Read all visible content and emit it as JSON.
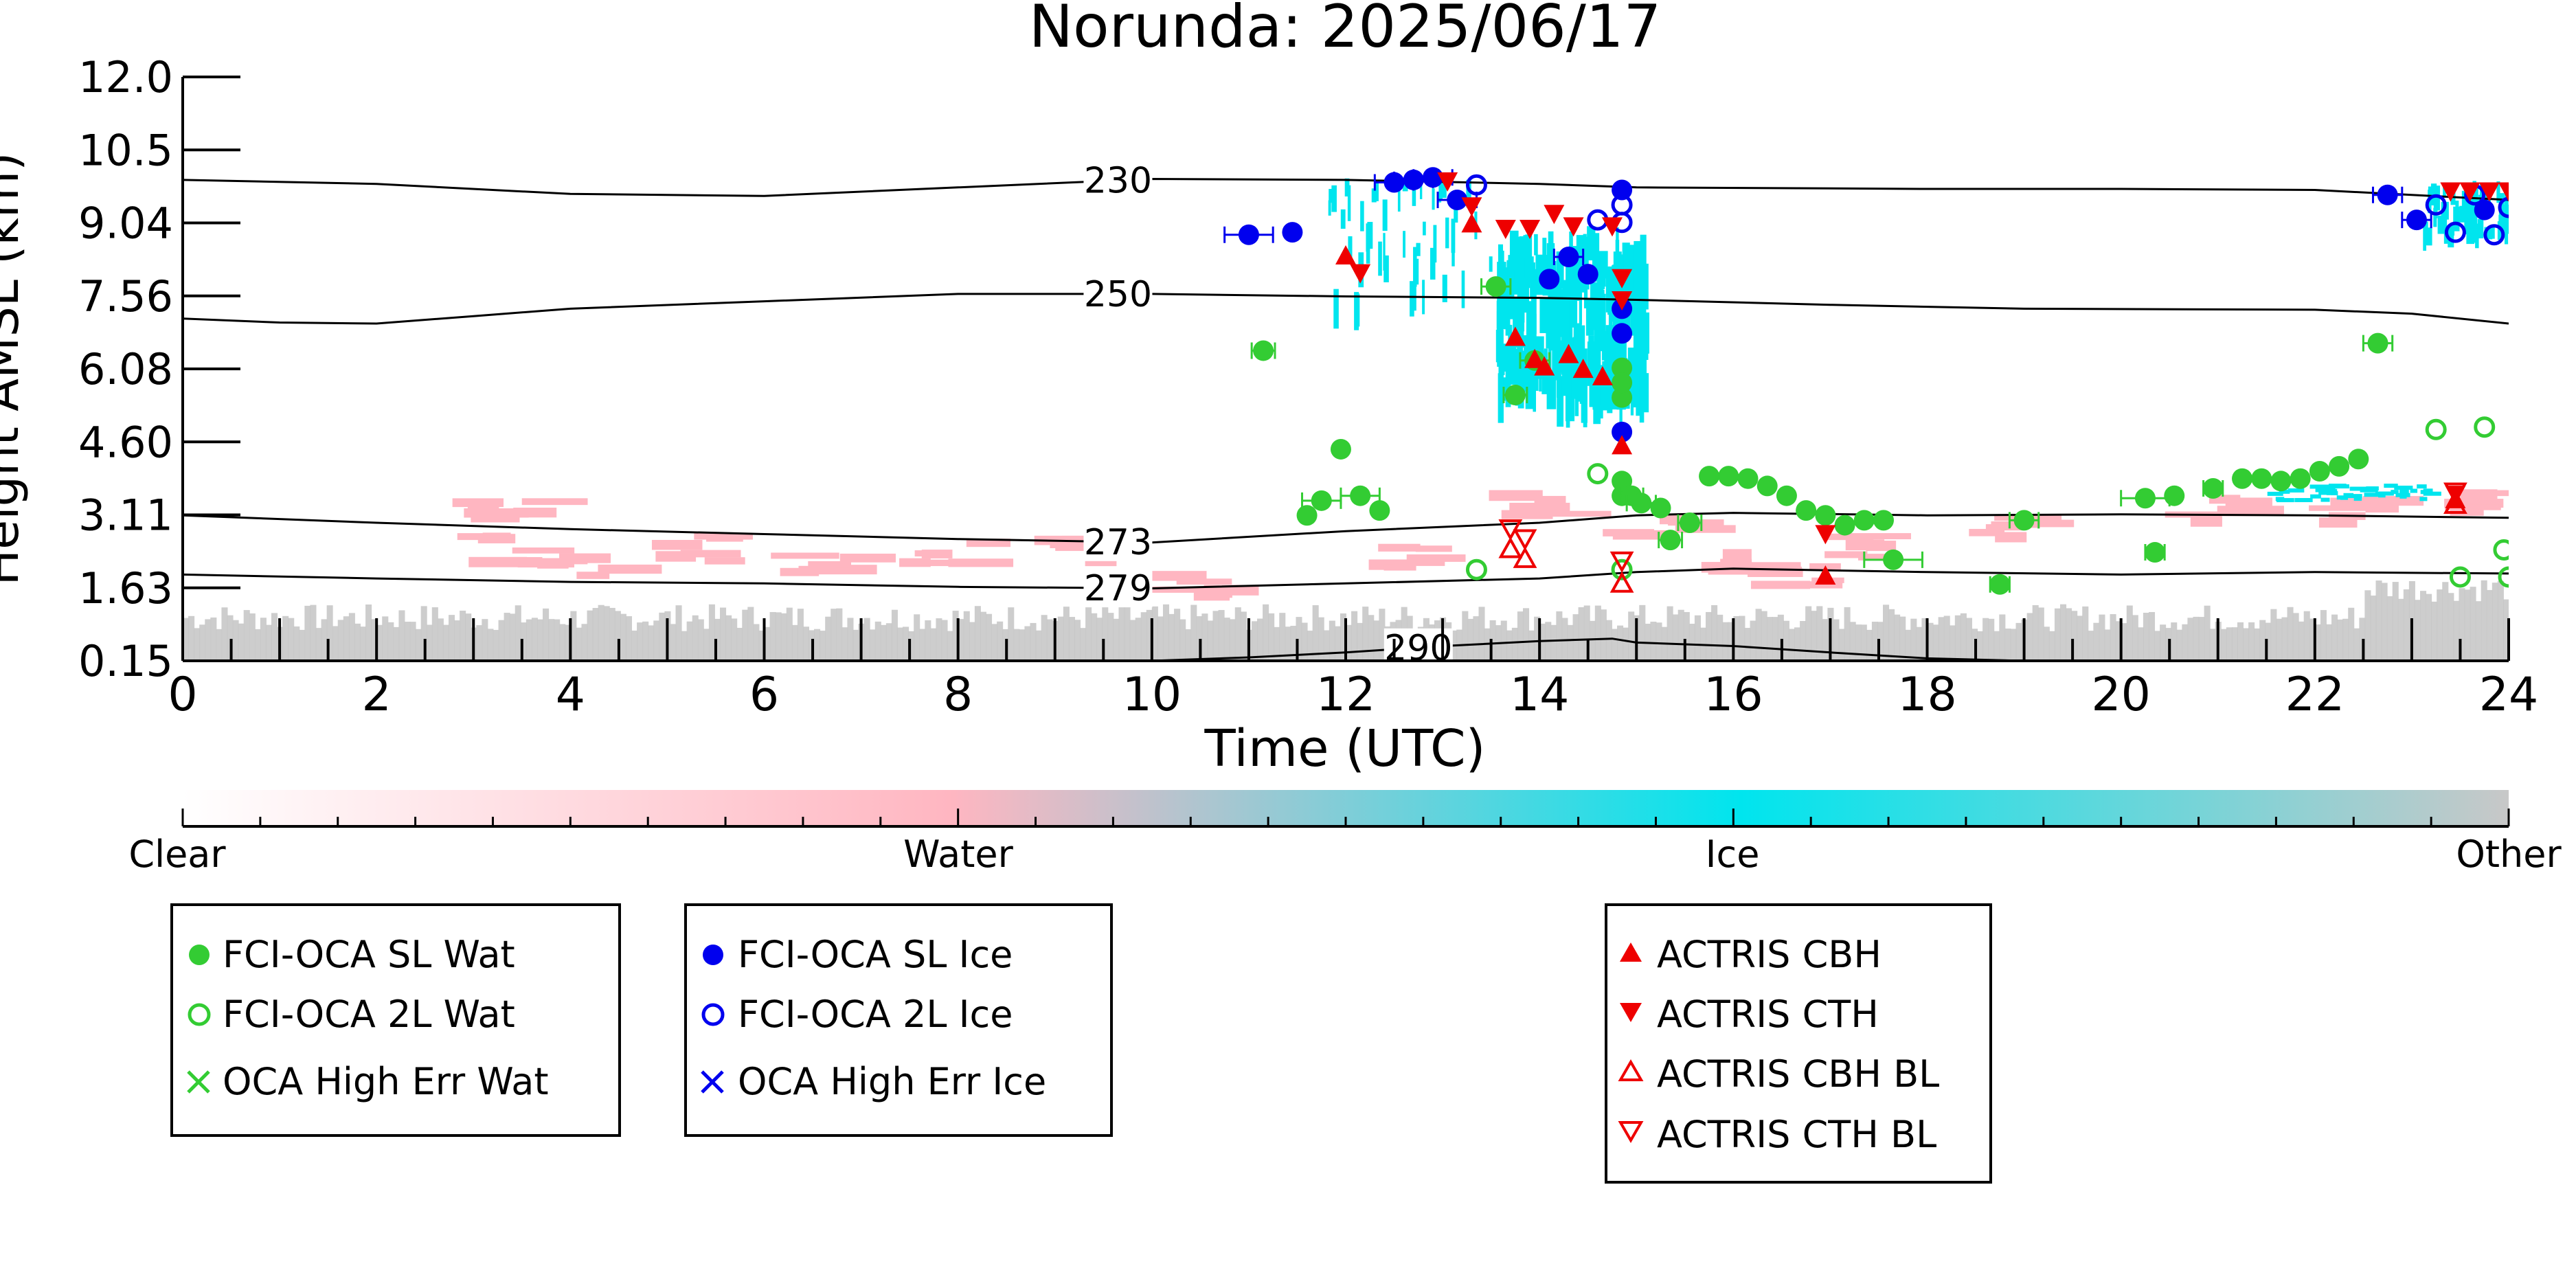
{
  "chart_data": {
    "type": "scatter",
    "title": "Norunda: 2025/06/17",
    "xlabel": "Time (UTC)",
    "ylabel": "Height AMSL (km)",
    "xlim": [
      0,
      24
    ],
    "ylim": [
      0.15,
      12.0
    ],
    "y_ticks": [
      0.15,
      1.63,
      3.11,
      4.6,
      6.08,
      7.56,
      9.04,
      10.5,
      12.0
    ],
    "y_tick_labels": [
      "0.15",
      "1.63",
      "3.11",
      "4.60",
      "6.08",
      "7.56",
      "9.04",
      "10.5",
      "12.0"
    ],
    "x_ticks": [
      0,
      2,
      4,
      6,
      8,
      10,
      12,
      14,
      16,
      18,
      20,
      22,
      24
    ],
    "x_tick_labels": [
      "0",
      "2",
      "4",
      "6",
      "8",
      "10",
      "12",
      "14",
      "16",
      "18",
      "20",
      "22",
      "24"
    ],
    "grid": false,
    "colors": {
      "sl_wat": "#33cc33",
      "sl_ice": "#0000ee",
      "actris": "#ee0000",
      "ice_mask": "#00e5ee",
      "water_mask": "#ffb6c1",
      "other_mask": "#c8c8c8",
      "isotherm": "#000000"
    },
    "isotherms": [
      {
        "label": "230",
        "label_x": 9.65,
        "points": [
          [
            0,
            9.9
          ],
          [
            2,
            9.82
          ],
          [
            4,
            9.62
          ],
          [
            6,
            9.58
          ],
          [
            8,
            9.75
          ],
          [
            10,
            9.92
          ],
          [
            12,
            9.9
          ],
          [
            14,
            9.82
          ],
          [
            15,
            9.75
          ],
          [
            18,
            9.72
          ],
          [
            20,
            9.72
          ],
          [
            22,
            9.7
          ],
          [
            24,
            9.5
          ]
        ]
      },
      {
        "label": "250",
        "label_x": 9.65,
        "points": [
          [
            0,
            7.1
          ],
          [
            1,
            7.02
          ],
          [
            2,
            7.0
          ],
          [
            3,
            7.15
          ],
          [
            4,
            7.3
          ],
          [
            6,
            7.45
          ],
          [
            8,
            7.6
          ],
          [
            10,
            7.6
          ],
          [
            12,
            7.55
          ],
          [
            14,
            7.52
          ],
          [
            15,
            7.48
          ],
          [
            17,
            7.38
          ],
          [
            19,
            7.3
          ],
          [
            22,
            7.28
          ],
          [
            23,
            7.2
          ],
          [
            24,
            7.0
          ]
        ]
      },
      {
        "label": "273",
        "label_x": 9.65,
        "points": [
          [
            0,
            3.1
          ],
          [
            2,
            2.95
          ],
          [
            4,
            2.82
          ],
          [
            6,
            2.72
          ],
          [
            8,
            2.62
          ],
          [
            10,
            2.55
          ],
          [
            12,
            2.78
          ],
          [
            14,
            2.95
          ],
          [
            15,
            3.1
          ],
          [
            16,
            3.15
          ],
          [
            18,
            3.1
          ],
          [
            20,
            3.12
          ],
          [
            22,
            3.1
          ],
          [
            24,
            3.05
          ]
        ]
      },
      {
        "label": "279",
        "label_x": 9.65,
        "points": [
          [
            0,
            1.9
          ],
          [
            2,
            1.82
          ],
          [
            4,
            1.75
          ],
          [
            6,
            1.72
          ],
          [
            8,
            1.65
          ],
          [
            10,
            1.62
          ],
          [
            12,
            1.72
          ],
          [
            14,
            1.82
          ],
          [
            15,
            1.95
          ],
          [
            16,
            2.02
          ],
          [
            18,
            1.95
          ],
          [
            20,
            1.9
          ],
          [
            22,
            1.95
          ],
          [
            24,
            1.92
          ]
        ]
      },
      {
        "label": "290",
        "label_x": 12.75,
        "points": [
          [
            10,
            0.15
          ],
          [
            11,
            0.22
          ],
          [
            12,
            0.32
          ],
          [
            13,
            0.45
          ],
          [
            14,
            0.55
          ],
          [
            14.75,
            0.6
          ],
          [
            15,
            0.52
          ],
          [
            16,
            0.45
          ],
          [
            17,
            0.32
          ],
          [
            18,
            0.2
          ],
          [
            19,
            0.15
          ]
        ]
      }
    ],
    "series": [
      {
        "name": "FCI-OCA SL Wat",
        "marker": "filled-circle",
        "color": "#33cc33",
        "points": [
          [
            11.15,
            6.45,
            0.12
          ],
          [
            11.6,
            3.1,
            0
          ],
          [
            11.75,
            3.4,
            0.2
          ],
          [
            11.95,
            4.45,
            0
          ],
          [
            12.15,
            3.5,
            0.2
          ],
          [
            12.35,
            3.2,
            0
          ],
          [
            13.55,
            7.75,
            0.15
          ],
          [
            13.75,
            5.55,
            0.12
          ],
          [
            13.95,
            6.25,
            0.15
          ],
          [
            14.85,
            3.5,
            0
          ],
          [
            14.85,
            5.5,
            0
          ],
          [
            14.85,
            6.1,
            0
          ],
          [
            14.85,
            5.8,
            0
          ],
          [
            14.85,
            3.8,
            0
          ],
          [
            14.95,
            3.5,
            0.12
          ],
          [
            15.05,
            3.35,
            0.15
          ],
          [
            15.25,
            3.25,
            0
          ],
          [
            15.35,
            2.6,
            0.12
          ],
          [
            15.55,
            2.95,
            0.12
          ],
          [
            15.75,
            3.9,
            0
          ],
          [
            15.95,
            3.9,
            0
          ],
          [
            16.15,
            3.85,
            0
          ],
          [
            16.35,
            3.7,
            0
          ],
          [
            16.55,
            3.5,
            0
          ],
          [
            16.75,
            3.2,
            0
          ],
          [
            16.95,
            3.1,
            0
          ],
          [
            17.15,
            2.9,
            0
          ],
          [
            17.35,
            3.0,
            0
          ],
          [
            17.55,
            3.0,
            0
          ],
          [
            17.65,
            2.2,
            0.3
          ],
          [
            18.75,
            1.7,
            0.1
          ],
          [
            19.0,
            3.0,
            0.15
          ],
          [
            20.25,
            3.45,
            0.25
          ],
          [
            20.35,
            2.35,
            0.1
          ],
          [
            20.55,
            3.5,
            0
          ],
          [
            20.95,
            3.65,
            0.1
          ],
          [
            21.25,
            3.85,
            0
          ],
          [
            21.45,
            3.85,
            0
          ],
          [
            21.65,
            3.8,
            0
          ],
          [
            21.85,
            3.85,
            0
          ],
          [
            22.05,
            4.0,
            0
          ],
          [
            22.25,
            4.1,
            0
          ],
          [
            22.45,
            4.25,
            0
          ],
          [
            22.65,
            6.6,
            0.15
          ]
        ]
      },
      {
        "name": "FCI-OCA 2L Wat",
        "marker": "open-circle",
        "color": "#33cc33",
        "points": [
          [
            13.35,
            2.0,
            0
          ],
          [
            14.6,
            3.95,
            0
          ],
          [
            14.85,
            2.0,
            0
          ],
          [
            23.25,
            4.85,
            0
          ],
          [
            23.5,
            1.85,
            0
          ],
          [
            23.75,
            4.9,
            0
          ],
          [
            23.95,
            2.4,
            0
          ],
          [
            24.0,
            1.85,
            0
          ]
        ]
      },
      {
        "name": "OCA High Err Wat",
        "marker": "x",
        "color": "#33cc33",
        "points": []
      },
      {
        "name": "FCI-OCA SL Ice",
        "marker": "filled-circle",
        "color": "#0000ee",
        "points": [
          [
            11.0,
            8.8,
            0.25
          ],
          [
            11.45,
            8.85,
            0
          ],
          [
            12.5,
            9.85,
            0.2
          ],
          [
            12.7,
            9.9,
            0.2
          ],
          [
            12.9,
            9.95,
            0.2
          ],
          [
            13.15,
            9.5,
            0.2
          ],
          [
            14.1,
            7.9,
            0
          ],
          [
            14.3,
            8.35,
            0.15
          ],
          [
            14.5,
            8.0,
            0
          ],
          [
            14.85,
            9.7,
            0
          ],
          [
            14.85,
            7.3,
            0
          ],
          [
            14.85,
            6.8,
            0
          ],
          [
            14.85,
            4.8,
            0
          ],
          [
            22.75,
            9.6,
            0.15
          ],
          [
            23.05,
            9.1,
            0.15
          ],
          [
            23.75,
            9.3,
            0
          ]
        ]
      },
      {
        "name": "FCI-OCA 2L Ice",
        "marker": "open-circle",
        "color": "#0000ee",
        "points": [
          [
            13.35,
            9.8,
            0
          ],
          [
            14.6,
            9.1,
            0
          ],
          [
            14.85,
            9.4,
            0
          ],
          [
            14.85,
            9.05,
            0
          ],
          [
            23.25,
            9.4,
            0
          ],
          [
            23.45,
            8.85,
            0
          ],
          [
            23.65,
            9.6,
            0
          ],
          [
            23.85,
            8.8,
            0
          ],
          [
            24.0,
            9.35,
            0
          ]
        ]
      },
      {
        "name": "OCA High Err Ice",
        "marker": "x",
        "color": "#0000ee",
        "points": []
      },
      {
        "name": "ACTRIS CBH",
        "marker": "triangle-up",
        "color": "#ee0000",
        "points": [
          [
            12.0,
            8.35
          ],
          [
            13.3,
            9.0
          ],
          [
            13.75,
            6.7
          ],
          [
            13.95,
            6.25
          ],
          [
            14.05,
            6.1
          ],
          [
            14.3,
            6.35
          ],
          [
            14.45,
            6.05
          ],
          [
            14.65,
            5.9
          ],
          [
            14.85,
            4.5
          ],
          [
            16.95,
            1.85
          ],
          [
            23.45,
            3.4
          ]
        ]
      },
      {
        "name": "ACTRIS CTH",
        "marker": "triangle-down",
        "color": "#ee0000",
        "points": [
          [
            12.15,
            8.05
          ],
          [
            13.05,
            9.9
          ],
          [
            13.3,
            9.4
          ],
          [
            13.65,
            8.95
          ],
          [
            13.9,
            8.95
          ],
          [
            14.15,
            9.25
          ],
          [
            14.35,
            9.0
          ],
          [
            14.75,
            9.0
          ],
          [
            14.85,
            7.95
          ],
          [
            14.85,
            7.5
          ],
          [
            16.95,
            2.75
          ],
          [
            23.45,
            3.55
          ],
          [
            23.4,
            9.7
          ],
          [
            23.6,
            9.7
          ],
          [
            23.8,
            9.7
          ],
          [
            24.0,
            9.7
          ]
        ]
      },
      {
        "name": "ACTRIS CBH BL",
        "marker": "open-triangle-up",
        "color": "#ee0000",
        "points": [
          [
            13.7,
            2.4
          ],
          [
            13.85,
            2.2
          ],
          [
            14.85,
            1.7
          ],
          [
            23.45,
            3.3
          ]
        ]
      },
      {
        "name": "ACTRIS CTH BL",
        "marker": "open-triangle-down",
        "color": "#ee0000",
        "points": [
          [
            13.7,
            2.85
          ],
          [
            13.85,
            2.65
          ],
          [
            14.85,
            2.2
          ],
          [
            23.45,
            3.6
          ]
        ]
      }
    ],
    "colorbar": {
      "labels": [
        "Clear",
        "Water",
        "Ice",
        "Other"
      ],
      "stops": [
        "#ffffff",
        "#ffb6c1",
        "#00e5ee",
        "#c8c8c8"
      ]
    },
    "legends": [
      {
        "entries": [
          "FCI-OCA SL Wat",
          "FCI-OCA 2L Wat",
          "OCA High Err Wat"
        ]
      },
      {
        "entries": [
          "FCI-OCA SL Ice",
          "FCI-OCA 2L Ice",
          "OCA High Err Ice"
        ]
      },
      {
        "entries": [
          "ACTRIS CBH",
          "ACTRIS CTH",
          "ACTRIS CBH BL",
          "ACTRIS CTH BL"
        ]
      }
    ]
  }
}
